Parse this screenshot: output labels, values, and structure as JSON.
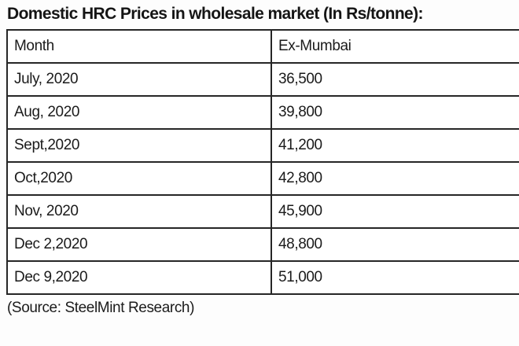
{
  "title": "Domestic HRC Prices in wholesale market (In Rs/tonne):",
  "source": "(Source: SteelMint Research)",
  "colors": {
    "background": "#ffffff",
    "text": "#1b1b1b",
    "border": "#262626"
  },
  "chart_data": {
    "type": "table",
    "title": "Domestic HRC Prices in wholesale market (In Rs/tonne)",
    "columns": [
      "Month",
      "Ex-Mumbai"
    ],
    "rows": [
      [
        "July, 2020",
        "36,500"
      ],
      [
        "Aug, 2020",
        "39,800"
      ],
      [
        "Sept,2020",
        "41,200"
      ],
      [
        "Oct,2020",
        "42,800"
      ],
      [
        "Nov, 2020",
        "45,900"
      ],
      [
        "Dec 2,2020",
        "48,800"
      ],
      [
        "Dec 9,2020",
        "51,000"
      ]
    ],
    "values_unit": "Rs/tonne",
    "values_numeric": [
      36500,
      39800,
      41200,
      42800,
      45900,
      48800,
      51000
    ],
    "source": "SteelMint Research"
  }
}
